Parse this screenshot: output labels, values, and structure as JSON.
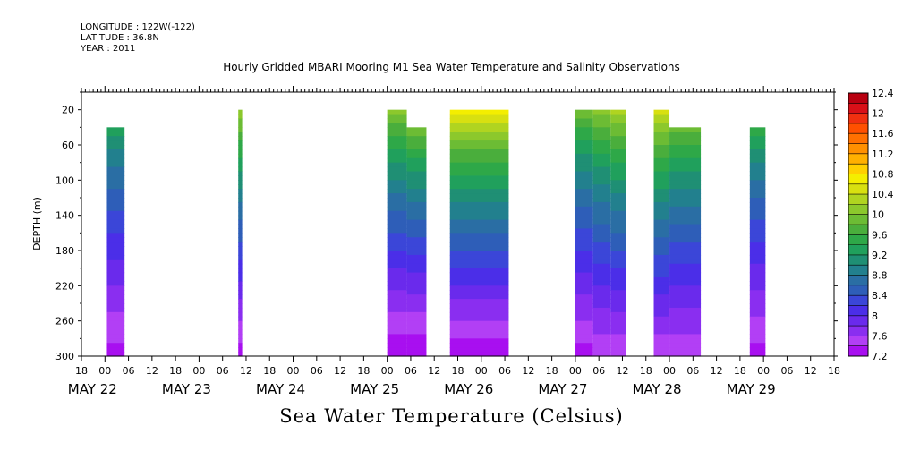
{
  "header": {
    "longitude": "LONGITUDE : 122W(-122)",
    "latitude": "LATITUDE : 36.8N",
    "year": "YEAR : 2011"
  },
  "title": "Hourly Gridded MBARI Mooring M1 Sea Water Temperature and Salinity Observations",
  "bottom_title": "Sea Water Temperature (Celsius)",
  "chart_data": {
    "type": "heatmap",
    "title": "Hourly Gridded MBARI Mooring M1 Sea Water Temperature and Salinity Observations",
    "xlabel": "",
    "ylabel": "DEPTH (m)",
    "x_range_hours": [
      -6,
      186
    ],
    "x_origin": "MAY 22 00",
    "ylim": [
      300,
      0
    ],
    "y_inverted": true,
    "hour_tick_labels": [
      "18",
      "00",
      "06",
      "12",
      "18",
      "00",
      "06",
      "12",
      "18",
      "00",
      "06",
      "12",
      "18",
      "00",
      "06",
      "12",
      "18",
      "00",
      "06",
      "12",
      "18",
      "00",
      "06",
      "12",
      "18",
      "00",
      "06",
      "12",
      "18",
      "00",
      "06",
      "12",
      "18"
    ],
    "date_labels": [
      {
        "label": "MAY 22",
        "hour": 0
      },
      {
        "label": "MAY 23",
        "hour": 24
      },
      {
        "label": "MAY 24",
        "hour": 48
      },
      {
        "label": "MAY 25",
        "hour": 72
      },
      {
        "label": "MAY 26",
        "hour": 96
      },
      {
        "label": "MAY 27",
        "hour": 120
      },
      {
        "label": "MAY 28",
        "hour": 144
      },
      {
        "label": "MAY 29",
        "hour": 168
      }
    ],
    "y_ticks": [
      20,
      60,
      100,
      140,
      180,
      220,
      260,
      300
    ],
    "colorbar": {
      "levels": [
        7.2,
        7.4,
        7.6,
        7.8,
        8,
        8.2,
        8.4,
        8.6,
        8.8,
        9,
        9.2,
        9.4,
        9.6,
        9.8,
        10,
        10.2,
        10.4,
        10.6,
        10.8,
        11,
        11.2,
        11.4,
        11.6,
        11.8,
        12,
        12.2,
        12.4
      ],
      "tick_labels": [
        "7.2",
        "7.6",
        "8",
        "8.4",
        "8.8",
        "9.2",
        "9.6",
        "10",
        "10.4",
        "10.8",
        "11.2",
        "11.6",
        "12",
        "12.4"
      ],
      "colors": [
        "#a80ff0",
        "#b23ff5",
        "#8a2ef0",
        "#6a2aec",
        "#4b2ee8",
        "#3b46d8",
        "#2e5eb8",
        "#2a6ea4",
        "#22808e",
        "#1f8f74",
        "#20a05c",
        "#2ea848",
        "#4aae3c",
        "#6cbc34",
        "#8cc82c",
        "#b0d420",
        "#d8e010",
        "#f4ee00",
        "#ffd000",
        "#ffb000",
        "#ff9000",
        "#ff7000",
        "#ff5000",
        "#f03010",
        "#d81018",
        "#b80010"
      ]
    },
    "observation_blocks": [
      {
        "start_hour": 0.5,
        "end_hour": 5,
        "top_depth": 40,
        "surface_temp": 9.4,
        "bottom_temp": 7.3
      },
      {
        "start_hour": 34,
        "end_hour": 35,
        "top_depth": 20,
        "surface_temp": 10.3,
        "bottom_temp": 7.3
      },
      {
        "start_hour": 72,
        "end_hour": 77,
        "top_depth": 20,
        "surface_temp": 10.2,
        "bottom_temp": 7.2
      },
      {
        "start_hour": 77,
        "end_hour": 82,
        "top_depth": 40,
        "surface_temp": 10.1,
        "bottom_temp": 7.2
      },
      {
        "start_hour": 88,
        "end_hour": 103,
        "top_depth": 20,
        "surface_temp": 10.8,
        "bottom_temp": 7.2
      },
      {
        "start_hour": 120,
        "end_hour": 124.5,
        "top_depth": 20,
        "surface_temp": 10.0,
        "bottom_temp": 7.3
      },
      {
        "start_hour": 124.5,
        "end_hour": 129,
        "top_depth": 20,
        "surface_temp": 10.2,
        "bottom_temp": 7.4
      },
      {
        "start_hour": 129,
        "end_hour": 133,
        "top_depth": 20,
        "surface_temp": 10.4,
        "bottom_temp": 7.4
      },
      {
        "start_hour": 140,
        "end_hour": 144,
        "top_depth": 20,
        "surface_temp": 10.6,
        "bottom_temp": 7.4
      },
      {
        "start_hour": 144,
        "end_hour": 152,
        "top_depth": 40,
        "surface_temp": 10.0,
        "bottom_temp": 7.4
      },
      {
        "start_hour": 164.5,
        "end_hour": 168.5,
        "top_depth": 40,
        "surface_temp": 9.6,
        "bottom_temp": 7.3
      }
    ]
  }
}
